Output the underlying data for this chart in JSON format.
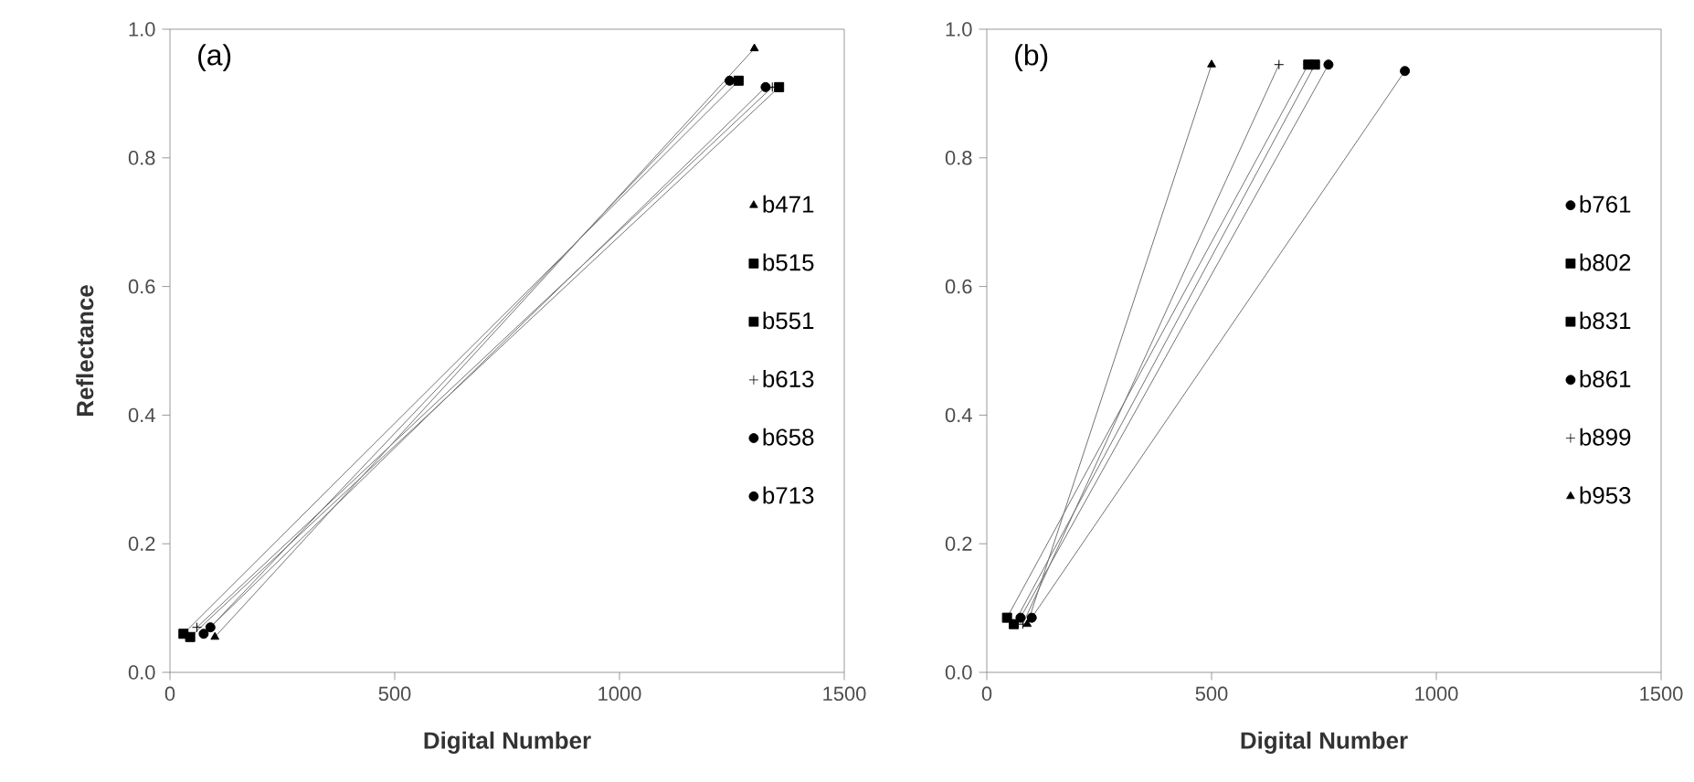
{
  "chart_data": [
    {
      "type": "line",
      "title": "(a)",
      "ylabel": "Reflectance",
      "xlabel": "Digital Number",
      "xlim": [
        0,
        1500
      ],
      "ylim": [
        0,
        1
      ],
      "xticks": [
        0,
        500,
        1000,
        1500
      ],
      "yticks": [
        {
          "value": 0,
          "label": "0.0"
        },
        {
          "value": 0.2,
          "label": "0.2"
        },
        {
          "value": 0.4,
          "label": "0.4"
        },
        {
          "value": 0.6,
          "label": "0.6"
        },
        {
          "value": 0.8,
          "label": "0.8"
        },
        {
          "value": 1,
          "label": "1.0"
        }
      ],
      "legend": "right",
      "line_style": "solid",
      "series": [
        {
          "name": "b471",
          "marker": "triangle",
          "color": "#000000",
          "x": [
            100,
            1300
          ],
          "values": [
            0.055,
            0.97
          ]
        },
        {
          "name": "b515",
          "marker": "square",
          "color": "#000000",
          "x": [
            30,
            1265
          ],
          "values": [
            0.06,
            0.92
          ]
        },
        {
          "name": "b551",
          "marker": "square",
          "color": "#000000",
          "x": [
            45,
            1355
          ],
          "values": [
            0.055,
            0.91
          ]
        },
        {
          "name": "b613",
          "marker": "cross",
          "color": "#000000",
          "x": [
            60,
            1340
          ],
          "values": [
            0.07,
            0.91
          ]
        },
        {
          "name": "b658",
          "marker": "circle",
          "color": "#000000",
          "x": [
            75,
            1325
          ],
          "values": [
            0.06,
            0.91
          ]
        },
        {
          "name": "b713",
          "marker": "circle",
          "color": "#000000",
          "x": [
            90,
            1245
          ],
          "values": [
            0.07,
            0.92
          ]
        }
      ]
    },
    {
      "type": "line",
      "title": "(b)",
      "xlabel": "Digital Number",
      "xlim": [
        0,
        1500
      ],
      "ylim": [
        0,
        1
      ],
      "xticks": [
        0,
        500,
        1000,
        1500
      ],
      "yticks": [
        {
          "value": 0,
          "label": "0.0"
        },
        {
          "value": 0.2,
          "label": "0.2"
        },
        {
          "value": 0.4,
          "label": "0.4"
        },
        {
          "value": 0.6,
          "label": "0.6"
        },
        {
          "value": 0.8,
          "label": "0.8"
        },
        {
          "value": 1,
          "label": "1.0"
        }
      ],
      "legend": "right",
      "line_style": "solid",
      "series": [
        {
          "name": "b761",
          "marker": "circle",
          "color": "#000000",
          "x": [
            100,
            930
          ],
          "values": [
            0.085,
            0.935
          ]
        },
        {
          "name": "b802",
          "marker": "square",
          "color": "#000000",
          "x": [
            60,
            730
          ],
          "values": [
            0.075,
            0.945
          ]
        },
        {
          "name": "b831",
          "marker": "square",
          "color": "#000000",
          "x": [
            45,
            715
          ],
          "values": [
            0.085,
            0.945
          ]
        },
        {
          "name": "b861",
          "marker": "circle",
          "color": "#000000",
          "x": [
            75,
            760
          ],
          "values": [
            0.085,
            0.945
          ]
        },
        {
          "name": "b899",
          "marker": "cross",
          "color": "#000000",
          "x": [
            80,
            650
          ],
          "values": [
            0.075,
            0.945
          ]
        },
        {
          "name": "b953",
          "marker": "triangle",
          "color": "#000000",
          "x": [
            90,
            500
          ],
          "values": [
            0.075,
            0.945
          ]
        }
      ]
    }
  ]
}
